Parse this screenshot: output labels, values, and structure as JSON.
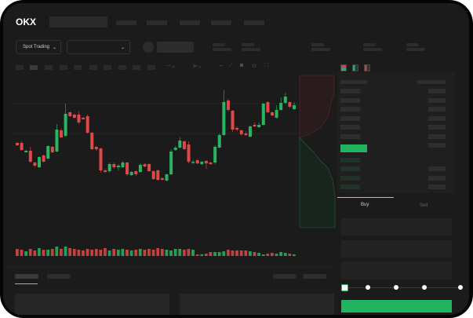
{
  "header": {
    "logo_text": "OKX",
    "nav_items": [
      "",
      "",
      "",
      "",
      ""
    ]
  },
  "market_bar": {
    "market_type_select": "Spot Trading",
    "pair_select": ""
  },
  "order_book": {
    "view_icons": [
      "book-both-icon",
      "book-bids-icon",
      "book-asks-icon"
    ]
  },
  "trade_form": {
    "tabs": [
      "Buy",
      "Sell"
    ],
    "active_tab": "Buy",
    "slider_percent": 0,
    "slider_marks": [
      0,
      25,
      50,
      75,
      100
    ]
  },
  "colors": {
    "up": "#27b562",
    "down": "#e04848",
    "buy_button": "#22b35e",
    "background": "#1b1b1b"
  },
  "chart_data": {
    "type": "candlestick",
    "ohlc_order": [
      "open",
      "close",
      "high",
      "low"
    ],
    "candles": [
      [
        68,
        65,
        69,
        64
      ],
      [
        68,
        59,
        70,
        58
      ],
      [
        56,
        58,
        59,
        56
      ],
      [
        58,
        44,
        63,
        43
      ],
      [
        43,
        39,
        44,
        37
      ],
      [
        37,
        50,
        51,
        36
      ],
      [
        52,
        44,
        53,
        43
      ],
      [
        48,
        64,
        65,
        47
      ],
      [
        63,
        56,
        64,
        55
      ],
      [
        57,
        85,
        92,
        56
      ],
      [
        84,
        75,
        86,
        74
      ],
      [
        77,
        105,
        118,
        76
      ],
      [
        107,
        102,
        108,
        101
      ],
      [
        104,
        100,
        105,
        99
      ],
      [
        104,
        94,
        108,
        92
      ],
      [
        100,
        98,
        101,
        98
      ],
      [
        102,
        81,
        104,
        80
      ],
      [
        81,
        60,
        82,
        59
      ],
      [
        63,
        60,
        64,
        58
      ],
      [
        61,
        33,
        62,
        30
      ],
      [
        33,
        31,
        35,
        30
      ],
      [
        32,
        41,
        43,
        30
      ],
      [
        41,
        37,
        43,
        35
      ],
      [
        37,
        39,
        41,
        33
      ],
      [
        37,
        43,
        45,
        36
      ],
      [
        43,
        28,
        44,
        26
      ],
      [
        27,
        31,
        32,
        26
      ],
      [
        32,
        28,
        33,
        26
      ],
      [
        31,
        40,
        42,
        30
      ],
      [
        41,
        38,
        42,
        37
      ],
      [
        41,
        32,
        42,
        31
      ],
      [
        32,
        22,
        33,
        21
      ],
      [
        33,
        21,
        34,
        20
      ],
      [
        23,
        21,
        24,
        20
      ],
      [
        20,
        28,
        29,
        19
      ],
      [
        28,
        57,
        60,
        27
      ],
      [
        59,
        62,
        64,
        58
      ],
      [
        62,
        71,
        75,
        61
      ],
      [
        70,
        60,
        71,
        59
      ],
      [
        66,
        44,
        70,
        42
      ],
      [
        43,
        44,
        46,
        41
      ],
      [
        46,
        42,
        47,
        41
      ],
      [
        41,
        44,
        45,
        40
      ],
      [
        45,
        42,
        46,
        35
      ],
      [
        43,
        41,
        44,
        40
      ],
      [
        43,
        63,
        65,
        41
      ],
      [
        62,
        78,
        80,
        61
      ],
      [
        78,
        120,
        135,
        77
      ],
      [
        122,
        110,
        124,
        108
      ],
      [
        109,
        85,
        110,
        82
      ],
      [
        87,
        85,
        89,
        83
      ],
      [
        84,
        79,
        85,
        77
      ],
      [
        80,
        78,
        83,
        77
      ],
      [
        76,
        89,
        90,
        75
      ],
      [
        91,
        89,
        94,
        88
      ],
      [
        88,
        91,
        94,
        87
      ],
      [
        91,
        118,
        119,
        90
      ],
      [
        120,
        107,
        121,
        106
      ],
      [
        107,
        103,
        108,
        102
      ],
      [
        100,
        110,
        116,
        99
      ],
      [
        110,
        119,
        126,
        109
      ],
      [
        119,
        127,
        132,
        118
      ],
      [
        120,
        114,
        121,
        112
      ],
      [
        111,
        116,
        120,
        110
      ]
    ],
    "volume": [
      9,
      8,
      6,
      9,
      7,
      10,
      8,
      8,
      9,
      12,
      9,
      12,
      10,
      9,
      8,
      7,
      9,
      8,
      9,
      8,
      10,
      7,
      9,
      8,
      9,
      8,
      7,
      8,
      9,
      8,
      9,
      8,
      10,
      9,
      8,
      7,
      9,
      9,
      8,
      9,
      8,
      2,
      2,
      3,
      5,
      5,
      5,
      6,
      8,
      7,
      7,
      7,
      7,
      6,
      5,
      4,
      2,
      3,
      4,
      3,
      5,
      4,
      3,
      2
    ],
    "grid": false
  }
}
